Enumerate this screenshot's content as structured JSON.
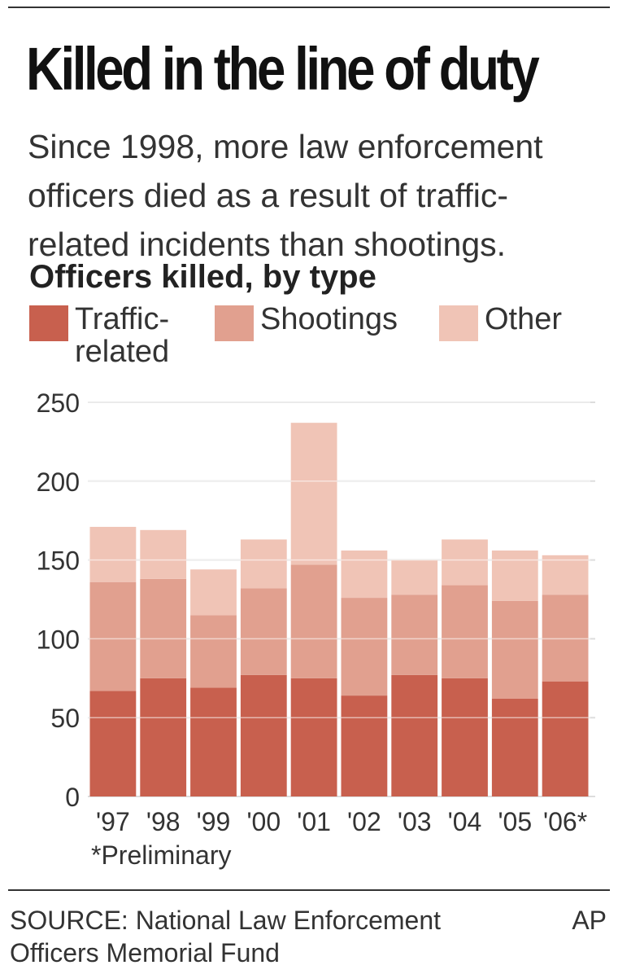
{
  "title": "Killed in the line of duty",
  "subtitle": "Since 1998, more law enforcement officers died as a result of traffic-related incidents than shootings.",
  "footnote": "*Preliminary",
  "source": "SOURCE: National Law Enforcement Officers Memorial Fund",
  "credit": "AP",
  "colors": {
    "traffic": "#c8604e",
    "shootings": "#e1a08f",
    "other": "#f0c4b6",
    "grid": "#dddddd"
  },
  "chart_data": {
    "type": "bar",
    "stacked": true,
    "title": "Officers killed, by type",
    "categories": [
      "'97",
      "'98",
      "'99",
      "'00",
      "'01",
      "'02",
      "'03",
      "'04",
      "'05",
      "'06*"
    ],
    "series": [
      {
        "name": "Traffic-related",
        "values": [
          67,
          75,
          69,
          77,
          75,
          64,
          77,
          75,
          62,
          73
        ]
      },
      {
        "name": "Shootings",
        "values": [
          69,
          63,
          46,
          55,
          72,
          62,
          51,
          59,
          62,
          55
        ]
      },
      {
        "name": "Other",
        "values": [
          35,
          31,
          29,
          31,
          90,
          30,
          22,
          29,
          32,
          25
        ]
      }
    ],
    "yticks": [
      0,
      50,
      100,
      150,
      200,
      250
    ],
    "ylim": [
      0,
      250
    ],
    "grid": true,
    "legend_position": "top"
  }
}
